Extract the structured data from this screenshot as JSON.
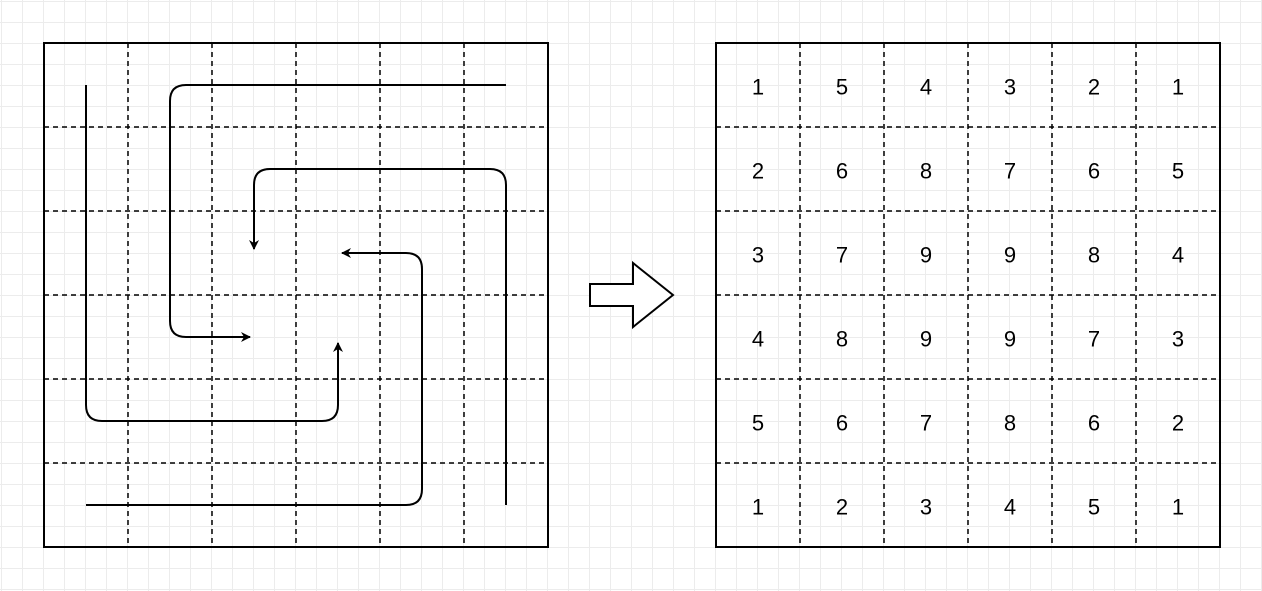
{
  "right_grid": {
    "rows": [
      [
        "1",
        "5",
        "4",
        "3",
        "2",
        "1"
      ],
      [
        "2",
        "6",
        "8",
        "7",
        "6",
        "5"
      ],
      [
        "3",
        "7",
        "9",
        "9",
        "8",
        "4"
      ],
      [
        "4",
        "8",
        "9",
        "9",
        "7",
        "3"
      ],
      [
        "5",
        "6",
        "7",
        "8",
        "6",
        "2"
      ],
      [
        "1",
        "2",
        "3",
        "4",
        "5",
        "1"
      ]
    ]
  },
  "icons": {
    "transform_arrow": "right-arrow-icon",
    "path_arrowheads": "arrowhead-icon"
  },
  "colors": {
    "stroke": "#000000",
    "background": "#ffffff",
    "grid": "#ececec"
  }
}
